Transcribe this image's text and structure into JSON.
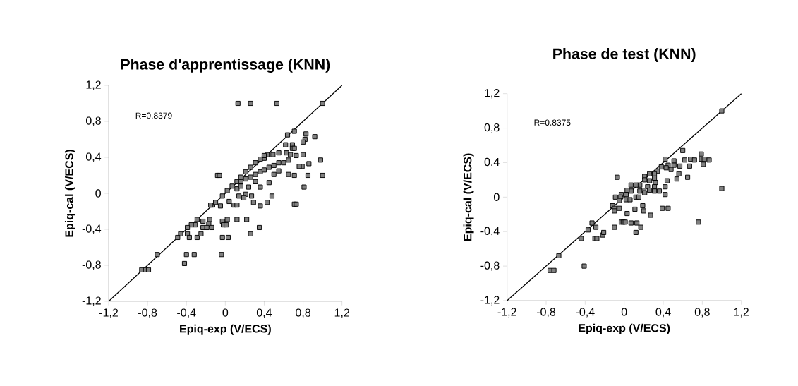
{
  "chart_data": [
    {
      "type": "scatter",
      "title": "Phase d'apprentissage (KNN)",
      "xlabel": "Epiq-exp (V/ECS)",
      "ylabel": "Epiq-cal (V/ECS)",
      "xlim": [
        -1.2,
        1.2
      ],
      "ylim": [
        -1.2,
        1.2
      ],
      "xticks": [
        {
          "value": -1.2,
          "label": "-1,2"
        },
        {
          "value": -0.8,
          "label": "-0,8"
        },
        {
          "value": -0.4,
          "label": "-0,4"
        },
        0,
        {
          "value": 0.4,
          "label": "0,4"
        },
        {
          "value": 0.8,
          "label": "0,8"
        },
        {
          "value": 1.2,
          "label": "1,2"
        }
      ],
      "yticks": [
        {
          "value": -1.2,
          "label": "-1,2"
        },
        {
          "value": -0.8,
          "label": "-0,8"
        },
        {
          "value": -0.4,
          "label": "-0,4"
        },
        0,
        {
          "value": 0.4,
          "label": "0,4"
        },
        {
          "value": 0.8,
          "label": "0,8"
        },
        {
          "value": 1.2,
          "label": "1,2"
        }
      ],
      "annotations": [
        "R=0.8379"
      ],
      "series": [
        {
          "marker": "square",
          "color": "#808080",
          "x": [
            0.13,
            0.26,
            0.53,
            1.0,
            0.64,
            0.71,
            0.83,
            0.82,
            0.8,
            0.92,
            0.62,
            0.69,
            0.69,
            0.71,
            0.55,
            0.49,
            0.63,
            0.67,
            0.73,
            0.8,
            0.43,
            0.4,
            0.98,
            0.86,
            0.79,
            0.76,
            0.6,
            0.65,
            -0.08,
            -0.06,
            0.65,
            0.71,
            0.85,
            1.0,
            0.81,
            0.71,
            0.73,
            0.48,
            0.43,
            0.36,
            0.29,
            0.27,
            0.21,
            0.19,
            0.14,
            0.09,
            0.12,
            0.04,
            -0.03,
            0.02,
            0.07,
            0.12,
            0.16,
            0.21,
            0.26,
            0.31,
            0.36,
            0.4,
            0.21,
            0.26,
            0.31,
            0.36,
            0.4,
            0.45,
            0.5,
            0.55,
            0.12,
            0.16,
            0.24,
            0.36,
            0.45,
            0.5,
            0.55,
            0.31,
            0.16,
            -0.13,
            -0.15,
            -0.1,
            -0.05,
            -0.29,
            -0.23,
            -0.16,
            -0.17,
            -0.14,
            -0.23,
            -0.19,
            -0.31,
            -0.35,
            -0.39,
            -0.46,
            -0.49,
            -0.39,
            -0.37,
            -0.29,
            -0.25,
            -0.03,
            -0.02,
            0.01,
            0.02,
            0.12,
            0.22,
            0.35,
            0.26,
            -0.03,
            0.03,
            -0.4,
            -0.32,
            -0.04,
            -0.42,
            -0.7,
            -0.86,
            -0.82,
            -0.79
          ],
          "values": [
            1.0,
            1.0,
            1.0,
            1.0,
            0.65,
            0.69,
            0.66,
            0.6,
            0.57,
            0.63,
            0.54,
            0.54,
            0.5,
            0.5,
            0.45,
            0.43,
            0.45,
            0.43,
            0.42,
            0.43,
            0.43,
            0.39,
            0.37,
            0.33,
            0.3,
            0.3,
            0.34,
            0.37,
            0.2,
            0.2,
            0.21,
            0.2,
            0.2,
            0.2,
            0.07,
            -0.12,
            -0.12,
            -0.03,
            -0.1,
            -0.14,
            -0.1,
            -0.03,
            -0.01,
            -0.05,
            -0.03,
            -0.13,
            -0.13,
            -0.09,
            -0.03,
            0.03,
            0.08,
            0.13,
            0.18,
            0.24,
            0.29,
            0.34,
            0.38,
            0.42,
            0.16,
            0.18,
            0.21,
            0.24,
            0.26,
            0.29,
            0.31,
            0.34,
            0.05,
            0.08,
            0.07,
            0.07,
            0.12,
            0.21,
            0.25,
            0.13,
            0.13,
            -0.13,
            -0.13,
            -0.1,
            -0.14,
            -0.29,
            -0.31,
            -0.29,
            -0.34,
            -0.38,
            -0.38,
            -0.38,
            -0.35,
            -0.35,
            -0.38,
            -0.45,
            -0.49,
            -0.45,
            -0.49,
            -0.49,
            -0.45,
            -0.31,
            -0.35,
            -0.35,
            -0.29,
            -0.29,
            -0.29,
            -0.38,
            -0.45,
            -0.49,
            -0.49,
            -0.68,
            -0.68,
            -0.68,
            -0.78,
            -0.68,
            -0.85,
            -0.85,
            -0.85
          ]
        },
        {
          "type": "line",
          "marker": "none",
          "color": "#000000",
          "x": [
            -1.2,
            1.2
          ],
          "values": [
            -1.2,
            1.2
          ]
        }
      ]
    },
    {
      "type": "scatter",
      "title": "Phase de test  (KNN)",
      "xlabel": "Epiq-exp (V/ECS)",
      "ylabel": "Epiq-cal (V/ECS)",
      "xlim": [
        -1.2,
        1.2
      ],
      "ylim": [
        -1.2,
        1.2
      ],
      "xticks": [
        {
          "value": -1.2,
          "label": "-1,2"
        },
        {
          "value": -0.8,
          "label": "-0,8"
        },
        {
          "value": -0.4,
          "label": "-0,4"
        },
        0,
        {
          "value": 0.4,
          "label": "0,4"
        },
        {
          "value": 0.8,
          "label": "0,8"
        },
        {
          "value": 1.2,
          "label": "1,2"
        }
      ],
      "yticks": [
        {
          "value": -1.2,
          "label": "-1,2"
        },
        {
          "value": -0.8,
          "label": "-0,8"
        },
        {
          "value": -0.4,
          "label": "-0,4"
        },
        0,
        {
          "value": 0.4,
          "label": "0,4"
        },
        {
          "value": 0.8,
          "label": "0,8"
        },
        {
          "value": 1.2,
          "label": "1,2"
        }
      ],
      "annotations": [
        "R=0.8375"
      ],
      "series": [
        {
          "marker": "square",
          "color": "#808080",
          "x": [
            1.0,
            0.6,
            0.79,
            0.62,
            0.68,
            0.72,
            0.79,
            0.82,
            0.87,
            0.81,
            0.67,
            0.57,
            0.51,
            0.51,
            0.48,
            0.45,
            0.42,
            0.43,
            0.38,
            0.34,
            0.31,
            0.26,
            0.21,
            0.21,
            0.26,
            0.31,
            0.32,
            0.31,
            0.24,
            0.2,
            0.16,
            0.12,
            0.07,
            0.07,
            0.03,
            0.02,
            -0.03,
            -0.04,
            -0.09,
            -0.05,
            0.02,
            0.06,
            0.12,
            0.15,
            0.16,
            0.21,
            0.26,
            0.31,
            0.36,
            0.42,
            0.44,
            0.42,
            0.56,
            0.54,
            0.65,
            -0.07,
            1.0,
            -0.12,
            -0.1,
            -0.1,
            -0.05,
            0.03,
            0.11,
            0.19,
            0.2,
            0.27,
            0.39,
            0.45,
            0.76,
            -0.03,
            -0.01,
            0.01,
            0.07,
            0.13,
            0.17,
            0.12,
            -0.1,
            -0.33,
            -0.29,
            -0.37,
            -0.44,
            -0.3,
            -0.28,
            -0.22,
            -0.21,
            -0.67,
            -0.41,
            -0.76,
            -0.72
          ],
          "values": [
            1.0,
            0.54,
            0.5,
            0.43,
            0.44,
            0.43,
            0.44,
            0.44,
            0.43,
            0.38,
            0.36,
            0.36,
            0.42,
            0.37,
            0.32,
            0.37,
            0.44,
            0.34,
            0.35,
            0.3,
            0.27,
            0.27,
            0.24,
            0.2,
            0.19,
            0.22,
            0.17,
            0.12,
            0.12,
            0.08,
            0.14,
            0.14,
            0.14,
            0.07,
            0.08,
            0.03,
            0.03,
            0.0,
            0.0,
            -0.04,
            -0.03,
            -0.03,
            0.0,
            0.0,
            0.07,
            0.05,
            0.08,
            0.07,
            0.07,
            0.12,
            0.19,
            0.03,
            0.27,
            0.21,
            0.23,
            0.23,
            0.1,
            -0.1,
            -0.13,
            -0.16,
            -0.13,
            -0.19,
            -0.14,
            -0.1,
            -0.16,
            -0.21,
            -0.13,
            -0.13,
            -0.29,
            -0.29,
            -0.29,
            -0.29,
            -0.3,
            -0.3,
            -0.35,
            -0.41,
            -0.35,
            -0.3,
            -0.35,
            -0.38,
            -0.48,
            -0.48,
            -0.48,
            -0.44,
            -0.41,
            -0.68,
            -0.8,
            -0.85,
            -0.85
          ]
        },
        {
          "type": "line",
          "marker": "none",
          "color": "#000000",
          "x": [
            -1.2,
            1.2
          ],
          "values": [
            -1.2,
            1.2
          ]
        }
      ]
    }
  ]
}
